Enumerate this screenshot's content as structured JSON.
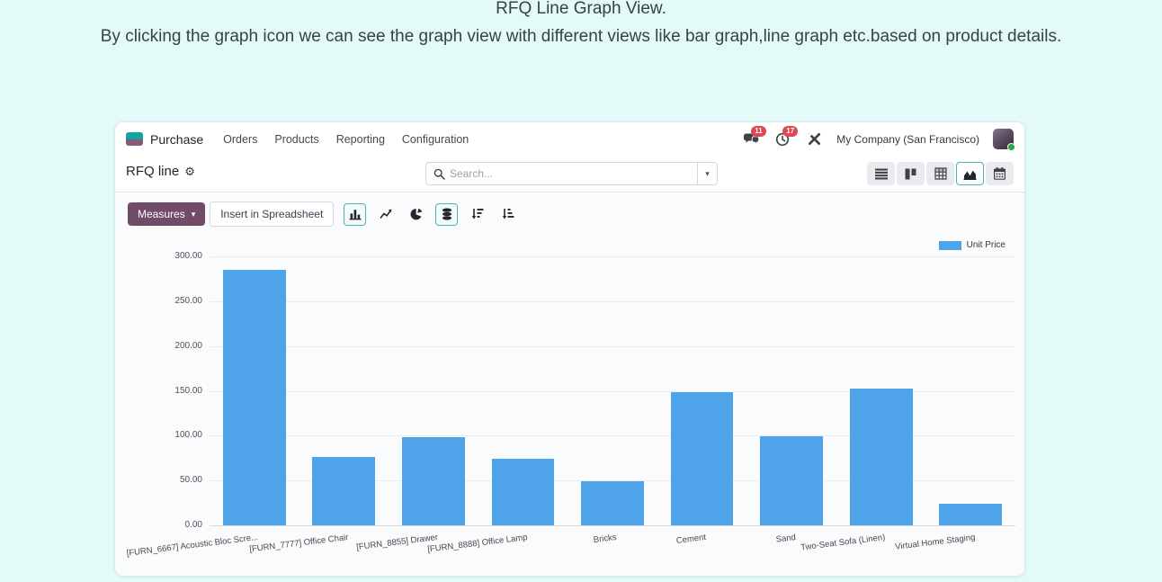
{
  "header": {
    "line1": "RFQ Line Graph View.",
    "line2": "By clicking the graph icon we can see the graph view with different views like bar graph,line graph etc.based on product details."
  },
  "nav": {
    "app_name": "Purchase",
    "menu": [
      "Orders",
      "Products",
      "Reporting",
      "Configuration"
    ],
    "systray": {
      "messages_badge": "11",
      "activities_badge": "17",
      "company": "My Company (San Francisco)"
    }
  },
  "control_panel": {
    "title": "RFQ line",
    "search_placeholder": "Search...",
    "view_switcher": [
      "list",
      "kanban",
      "pivot",
      "graph",
      "calendar"
    ],
    "active_view": "graph"
  },
  "toolbar": {
    "measures_label": "Measures",
    "insert_spreadsheet_label": "Insert in Spreadsheet",
    "chart_type_buttons": [
      "bar-chart",
      "line-chart",
      "pie-chart",
      "stacked",
      "sort-descending",
      "sort-ascending"
    ],
    "active_buttons": [
      "bar-chart",
      "stacked"
    ]
  },
  "chart_data": {
    "type": "bar",
    "title": "",
    "xlabel": "",
    "ylabel": "",
    "categories": [
      "[FURN_6667] Acoustic Bloc Scre...",
      "[FURN_7777] Office Chair",
      "[FURN_8855] Drawer",
      "[FURN_8888] Office Lamp",
      "Bricks",
      "Cement",
      "Sand",
      "Two-Seat Sofa (Linen)",
      "Virtual Home Staging"
    ],
    "series": [
      {
        "name": "Unit Price",
        "values": [
          285,
          76,
          98,
          74,
          49,
          149,
          99,
          153,
          24
        ]
      }
    ],
    "ylim": [
      0,
      300
    ],
    "ytick_step": 50,
    "ytick_format_decimals": 2,
    "grid": true,
    "legend_position": "top-right",
    "bar_color": "#4fa3e9"
  },
  "colors": {
    "accent_teal": "#4fb3ac",
    "brand_purple": "#714b67",
    "bar_blue": "#4fa3e9",
    "badge_red": "#de4852",
    "page_background": "#e2fbf9"
  }
}
